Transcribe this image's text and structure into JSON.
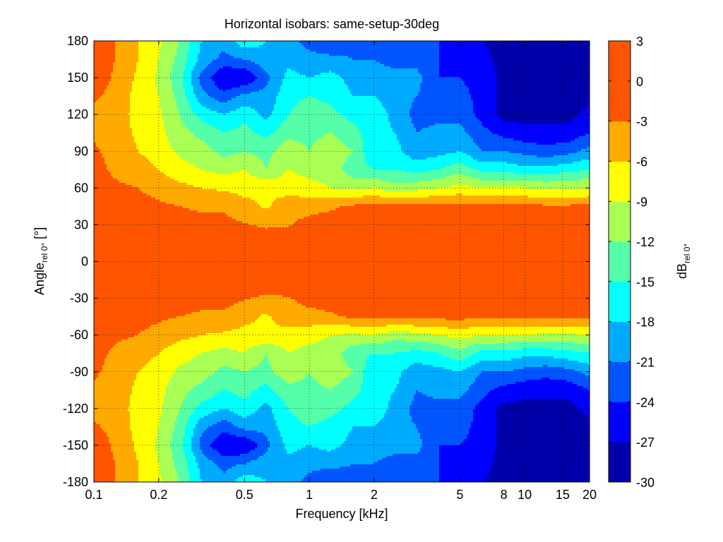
{
  "chart_data": {
    "type": "heatmap",
    "style": "filled-contour",
    "title": "Horizontal isobars: same-setup-30deg",
    "xlabel": "Frequency [kHz]",
    "ylabel_main": "Angle",
    "ylabel_sub": "rel 0°",
    "ylabel_unit": " [°]",
    "xscale": "log",
    "xlim": [
      0.1,
      20
    ],
    "ylim": [
      -180,
      180
    ],
    "grid": true,
    "xticks": [
      0.1,
      0.2,
      0.5,
      1,
      2,
      5,
      8,
      10,
      15,
      20
    ],
    "xtick_labels": [
      "0.1",
      "0.2",
      "0.5",
      "1",
      "2",
      "5",
      "8",
      "10",
      "15",
      "20"
    ],
    "yticks": [
      180,
      150,
      120,
      90,
      60,
      30,
      0,
      -30,
      -60,
      -90,
      -120,
      -150,
      -180
    ],
    "ytick_labels": [
      "180",
      "150",
      "120",
      "90",
      "60",
      "30",
      "0",
      "-30",
      "-60",
      "-90",
      "-120",
      "-150",
      "-180"
    ],
    "colorbar": {
      "label_main": "dB",
      "label_sub": "rel 0°",
      "placement": "right",
      "levels": [
        3,
        0,
        -3,
        -6,
        -9,
        -12,
        -15,
        -18,
        -21,
        -24,
        -27,
        -30
      ],
      "level_labels": [
        "3",
        "0",
        "-3",
        "-6",
        "-9",
        "-12",
        "-15",
        "-18",
        "-21",
        "-24",
        "-27",
        "-30"
      ],
      "colors_low_to_high": [
        "#0000AA",
        "#0000FF",
        "#0055FF",
        "#00AAFF",
        "#00FFFF",
        "#55FFAA",
        "#AAFF55",
        "#FFFF00",
        "#FFAA00",
        "#FF5500",
        "#FF5500"
      ],
      "range": [
        -30,
        3
      ]
    },
    "frequencies_khz": [
      0.1,
      0.125,
      0.16,
      0.2,
      0.25,
      0.315,
      0.4,
      0.5,
      0.63,
      0.8,
      1,
      1.25,
      1.6,
      2,
      2.5,
      3.15,
      4,
      5,
      6.3,
      8,
      10,
      12.5,
      16,
      20
    ],
    "angles_deg": [
      180,
      165,
      150,
      135,
      120,
      105,
      90,
      75,
      60,
      45,
      30,
      15,
      0,
      -15,
      -30,
      -45,
      -60,
      -75,
      -90,
      -105,
      -120,
      -135,
      -150,
      -165,
      -180
    ],
    "values_db": [
      [
        -0.5,
        -3,
        -6,
        -8.5,
        -12,
        -18,
        -20,
        -16,
        -18,
        -20,
        -22,
        -24,
        -22,
        -21,
        -24,
        -23,
        -24,
        -26,
        -27,
        -28,
        -28,
        -29,
        -29,
        -29
      ],
      [
        -0.5,
        -3,
        -6,
        -9,
        -13,
        -19,
        -22,
        -21,
        -19,
        -19,
        -20,
        -20,
        -21,
        -21,
        -22,
        -22,
        -24,
        -25,
        -26,
        -28,
        -28,
        -29,
        -29,
        -29
      ],
      [
        -1,
        -3.5,
        -6.5,
        -9.5,
        -14,
        -22,
        -27,
        -27,
        -22,
        -17,
        -18,
        -17,
        -19,
        -20,
        -20,
        -20,
        -24,
        -24,
        -25,
        -28,
        -28,
        -29,
        -29,
        -29
      ],
      [
        -2.5,
        -4,
        -7,
        -9,
        -13,
        -20,
        -23,
        -20,
        -20,
        -16,
        -15,
        -16,
        -18,
        -18,
        -20,
        -21,
        -23,
        -23,
        -25,
        -28,
        -28,
        -28.5,
        -29,
        -28
      ],
      [
        -4,
        -4.5,
        -7,
        -8.5,
        -12,
        -16,
        -18,
        -16,
        -19,
        -15,
        -13,
        -14,
        -16,
        -16,
        -19,
        -22,
        -22,
        -22,
        -25,
        -28,
        -28,
        -28,
        -28,
        -26
      ],
      [
        -3.5,
        -4.5,
        -6.5,
        -8,
        -11,
        -13,
        -15,
        -14,
        -16,
        -13,
        -13,
        -12,
        -14,
        -17,
        -18,
        -21,
        -20,
        -20,
        -23,
        -25,
        -26,
        -26,
        -26,
        -24
      ],
      [
        -2.5,
        -4,
        -6,
        -7.5,
        -9.5,
        -10.5,
        -13,
        -12,
        -13,
        -10,
        -12,
        -10,
        -12,
        -18,
        -17,
        -20,
        -19,
        -18,
        -21,
        -21,
        -22,
        -23,
        -22,
        -20
      ],
      [
        -2,
        -3.5,
        -4.5,
        -6,
        -8,
        -9,
        -10,
        -9,
        -12,
        -9,
        -10,
        -10,
        -14,
        -15,
        -15,
        -16,
        -15,
        -13,
        -16,
        -16,
        -17,
        -17,
        -16,
        -15
      ],
      [
        -1.5,
        -2.5,
        -3,
        -4,
        -5,
        -6,
        -6.5,
        -7,
        -6.5,
        -7.5,
        -8,
        -9,
        -9.5,
        -9,
        -11,
        -10,
        -9,
        -8,
        -9,
        -9,
        -9,
        -9.5,
        -9.5,
        -9
      ],
      [
        -1,
        -1.5,
        -2,
        -2.5,
        -3,
        -3.5,
        -3.5,
        -5,
        -6.5,
        -4,
        -4,
        -3.5,
        -2.5,
        -2,
        -2,
        -2,
        -2,
        -2,
        -2.5,
        -2.5,
        -2.5,
        -2.5,
        -2.5,
        -2.5
      ],
      [
        -0.5,
        -1,
        -1,
        -1.5,
        -1.5,
        -2,
        -2,
        -2.8,
        -3.5,
        -3.2,
        -2,
        -1.5,
        -1,
        -1,
        -1,
        -1,
        -1,
        -1,
        -1,
        -1,
        -1,
        -1,
        -1,
        -1
      ],
      [
        0,
        0,
        0,
        0,
        -0.5,
        -0.5,
        -1,
        -1,
        -1,
        -1,
        -0.5,
        0,
        0,
        0,
        0,
        0,
        0,
        0,
        0,
        0,
        0,
        0,
        0,
        0
      ],
      [
        0,
        0,
        0,
        0,
        0,
        0,
        0,
        0,
        0,
        0,
        0,
        0,
        0,
        0,
        0,
        0,
        0,
        0,
        0,
        0,
        0,
        0,
        0,
        0
      ],
      [
        0,
        0,
        0,
        0,
        -0.5,
        -0.5,
        -1,
        -1,
        -1,
        -1,
        -0.5,
        0,
        0,
        0,
        0,
        0,
        0,
        0,
        0,
        0,
        0,
        0,
        0,
        0
      ],
      [
        -0.5,
        -1,
        -1,
        -1.5,
        -1.5,
        -2,
        -2,
        -2.8,
        -3.5,
        -3.2,
        -2,
        -1.5,
        -1,
        -1,
        -1,
        -1,
        -1,
        -1,
        -1,
        -1,
        -1,
        -1,
        -1,
        -1
      ],
      [
        -1,
        -1.5,
        -2,
        -2.5,
        -3,
        -3.5,
        -3.5,
        -5,
        -6.5,
        -4,
        -4,
        -3.5,
        -2.5,
        -2,
        -2,
        -2,
        -2,
        -2,
        -2.5,
        -2.5,
        -2.5,
        -2.5,
        -2.5,
        -2.5
      ],
      [
        -1.5,
        -2.5,
        -3,
        -4,
        -5,
        -6,
        -6.5,
        -7,
        -6.5,
        -7.5,
        -8,
        -9,
        -9.5,
        -9,
        -11,
        -10,
        -9,
        -8,
        -9,
        -9,
        -9,
        -9.5,
        -9.5,
        -9
      ],
      [
        -2,
        -3.5,
        -4.5,
        -6,
        -8,
        -9,
        -10,
        -9,
        -12,
        -9,
        -10,
        -10,
        -14,
        -15,
        -15,
        -16,
        -15,
        -13,
        -16,
        -16,
        -17,
        -17,
        -16,
        -15
      ],
      [
        -2.5,
        -4,
        -6,
        -7.5,
        -9.5,
        -10.5,
        -13,
        -12,
        -13,
        -10,
        -12,
        -10,
        -12,
        -18,
        -17,
        -20,
        -19,
        -18,
        -21,
        -21,
        -22,
        -23,
        -22,
        -20
      ],
      [
        -3.5,
        -4.5,
        -6.5,
        -8,
        -11,
        -13,
        -15,
        -14,
        -16,
        -13,
        -13,
        -12,
        -14,
        -17,
        -18,
        -21,
        -20,
        -20,
        -23,
        -25,
        -26,
        -26,
        -26,
        -24
      ],
      [
        -4,
        -4.5,
        -7,
        -8.5,
        -12,
        -16,
        -18,
        -16,
        -19,
        -15,
        -13,
        -14,
        -16,
        -16,
        -19,
        -22,
        -22,
        -22,
        -25,
        -28,
        -28,
        -28,
        -28,
        -26
      ],
      [
        -2.5,
        -4,
        -7,
        -9,
        -13,
        -20,
        -23,
        -20,
        -20,
        -16,
        -15,
        -16,
        -18,
        -18,
        -20,
        -21,
        -23,
        -23,
        -25,
        -28,
        -28,
        -28.5,
        -29,
        -28
      ],
      [
        -1,
        -3.5,
        -6.5,
        -9.5,
        -14,
        -22,
        -27,
        -27,
        -22,
        -17,
        -18,
        -17,
        -19,
        -20,
        -20,
        -20,
        -24,
        -24,
        -25,
        -28,
        -28,
        -29,
        -29,
        -29
      ],
      [
        -0.5,
        -3,
        -6,
        -9,
        -13,
        -19,
        -22,
        -21,
        -19,
        -19,
        -20,
        -20,
        -21,
        -21,
        -22,
        -22,
        -24,
        -25,
        -26,
        -28,
        -28,
        -29,
        -29,
        -29
      ],
      [
        -0.5,
        -3,
        -6,
        -8.5,
        -12,
        -18,
        -20,
        -16,
        -18,
        -20,
        -22,
        -24,
        -22,
        -21,
        -24,
        -23,
        -24,
        -26,
        -27,
        -28,
        -28,
        -29,
        -29,
        -29
      ]
    ]
  }
}
